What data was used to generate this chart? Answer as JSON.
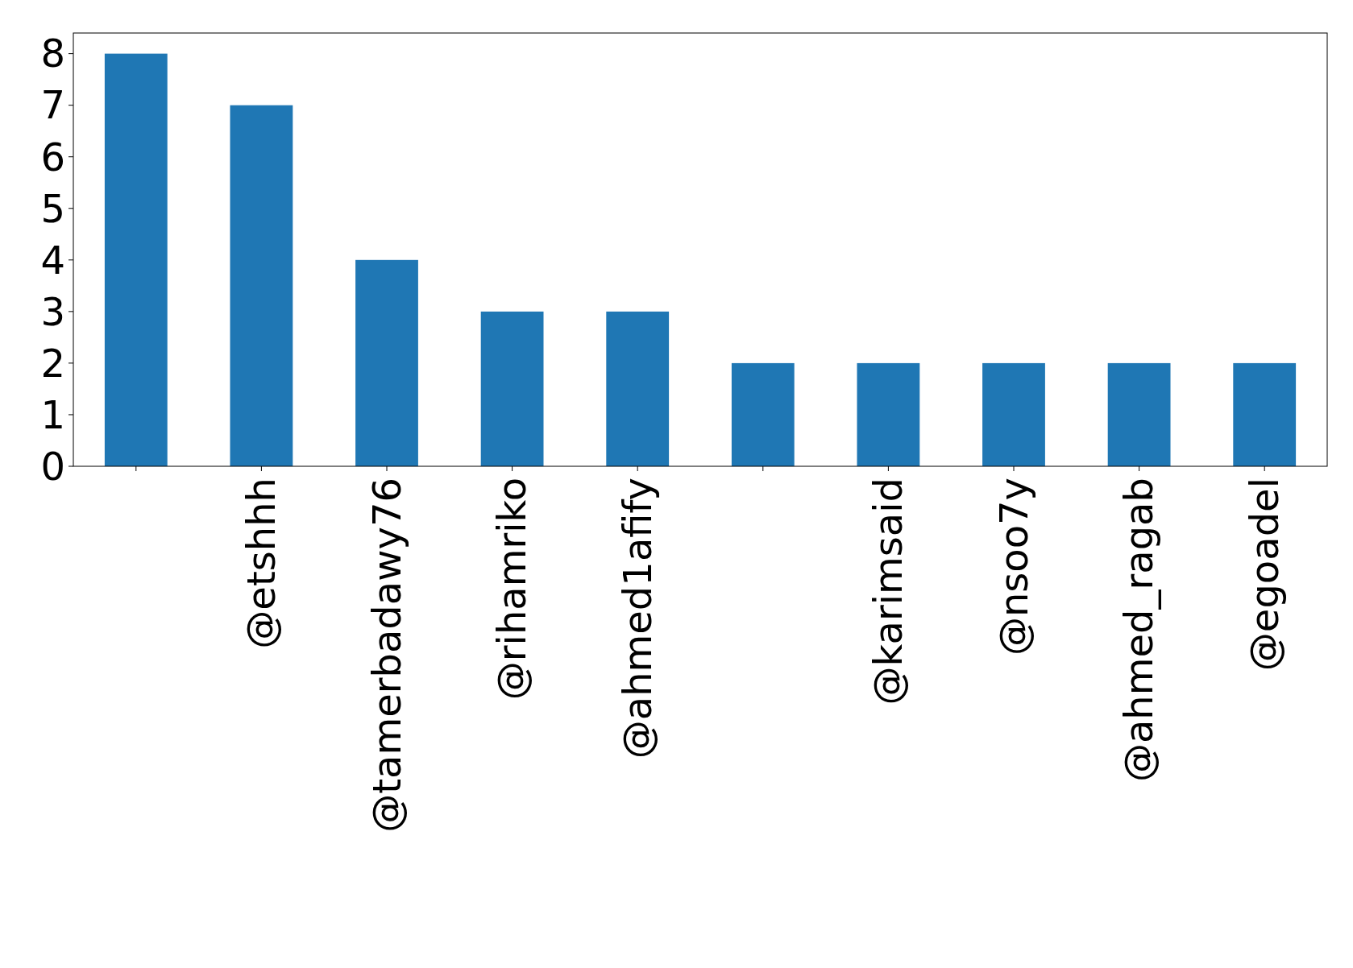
{
  "chart_data": {
    "type": "bar",
    "categories": [
      null,
      "@etshhh",
      "@tamerbadawy76",
      "@rihamriko",
      "@ahmed1afify",
      null,
      "@karimsaid",
      "@nsoo7y",
      "@ahmed_ragab",
      "@egoadel"
    ],
    "values": [
      8,
      7,
      4,
      3,
      3,
      2,
      2,
      2,
      2,
      2
    ],
    "color": "#1f77b4",
    "ylim": [
      0,
      8.4
    ],
    "yticks": [
      0,
      1,
      2,
      3,
      4,
      5,
      6,
      7,
      8
    ],
    "grid": false
  }
}
